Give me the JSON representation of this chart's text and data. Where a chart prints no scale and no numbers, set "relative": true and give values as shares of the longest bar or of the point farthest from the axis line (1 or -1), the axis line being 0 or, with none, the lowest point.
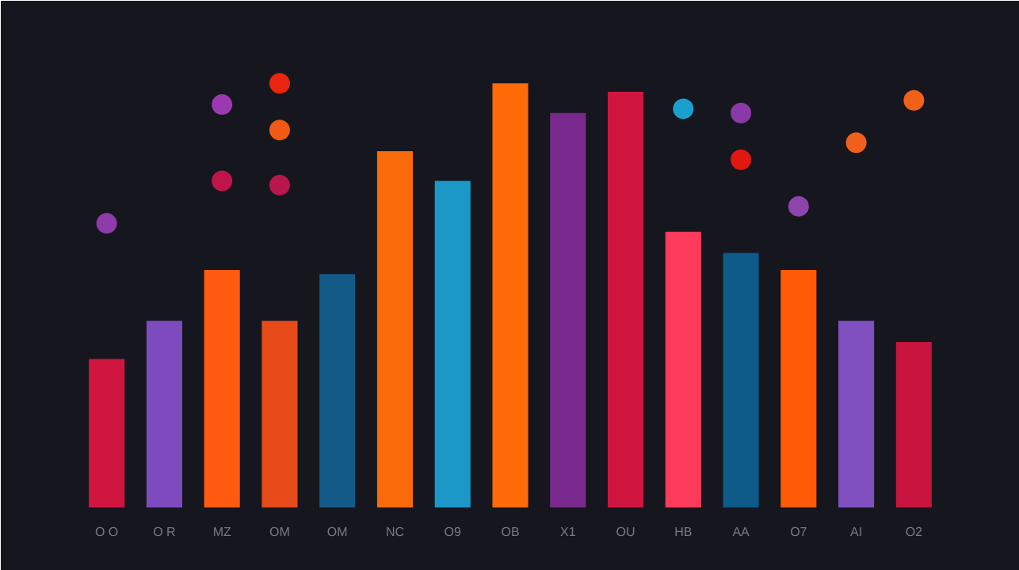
{
  "chart_data": {
    "type": "bar",
    "relative": true,
    "categories": [
      "O O",
      "O R",
      "MZ",
      "OM",
      "OM",
      "NC",
      "O9",
      "OB",
      "X1",
      "OU",
      "HB",
      "AA",
      "O7",
      "AI",
      "O2"
    ],
    "series": [
      {
        "values": [
          0.35,
          0.44,
          0.56,
          0.44,
          0.55,
          0.84,
          0.77,
          1,
          0.93,
          0.98,
          0.65,
          0.6,
          0.56,
          0.44,
          0.39
        ],
        "colors": [
          "#d0163f",
          "#7e4bbf",
          "#ff5a10",
          "#e84b1a",
          "#145a88",
          "#f86a0a",
          "#1b98c8",
          "#ff6a08",
          "#7a2a8e",
          "#d0163f",
          "#ff3b5c",
          "#0e5a88",
          "#ff5a08",
          "#8050c0",
          "#c8143e"
        ]
      },
      {
        "type": "scatter",
        "x": [
          "O O",
          "MZ",
          "MZ",
          "OM",
          "OM",
          "OM",
          "HB",
          "AA",
          "AA",
          "O7",
          "AI",
          "O2"
        ],
        "values": [
          0.67,
          0.95,
          0.77,
          0.76,
          1,
          0.89,
          0.94,
          0.82,
          0.93,
          0.71,
          0.86,
          0.96
        ],
        "colors": [
          "#8e3aa8",
          "#9b3ab0",
          "#c0154a",
          "#b8174e",
          "#e8260f",
          "#f05a14",
          "#1aa0d0",
          "#e0180f",
          "#8a3aa8",
          "#8e44ad",
          "#f0601a",
          "#f06018"
        ]
      }
    ],
    "marker": "circle"
  }
}
